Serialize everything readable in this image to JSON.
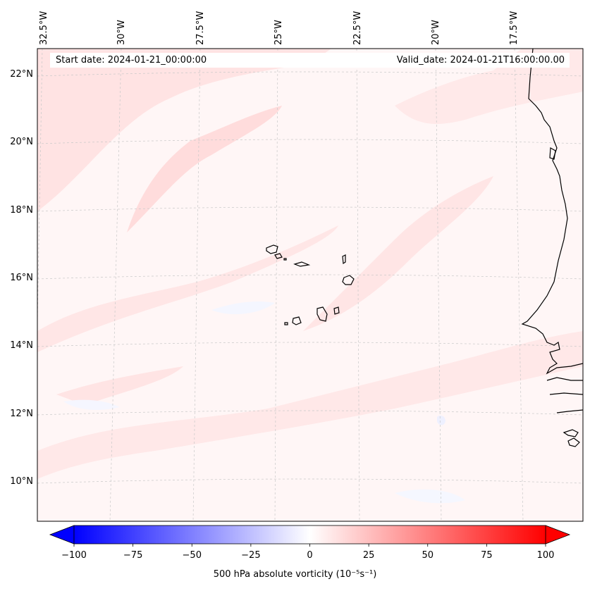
{
  "map": {
    "start_date_label": "Start date: 2024-01-21_00:00:00",
    "valid_date_label": "Valid_date: 2024-01-21T16:00:00.00",
    "longitude_labels": [
      "32.5°W",
      "30°W",
      "27.5°W",
      "25°W",
      "22.5°W",
      "20°W",
      "17.5°W"
    ],
    "latitude_labels": [
      "22°N",
      "20°N",
      "18°N",
      "16°N",
      "14°N",
      "12°N",
      "10°N"
    ],
    "colorbar": {
      "ticks": [
        "−100",
        "−75",
        "−50",
        "−25",
        "0",
        "25",
        "50",
        "75",
        "100"
      ],
      "tick_values": [
        -100,
        -75,
        -50,
        -25,
        0,
        25,
        50,
        75,
        100
      ],
      "range": [
        -100,
        100
      ],
      "label": "500 hPa absolute vorticity (10⁻⁵s⁻¹)",
      "colormap": "bwr",
      "low_color": "#0000ff",
      "mid_color": "#ffffff",
      "high_color": "#ff0000"
    },
    "colors": {
      "background_field": "#fff5f5",
      "positive_band": "#ffe2e2",
      "negative_patch": "#f3f5ff",
      "coastline": "#000000",
      "gridline": "#c8c8c8"
    },
    "region": "Cape Verde Islands and West African coast"
  }
}
